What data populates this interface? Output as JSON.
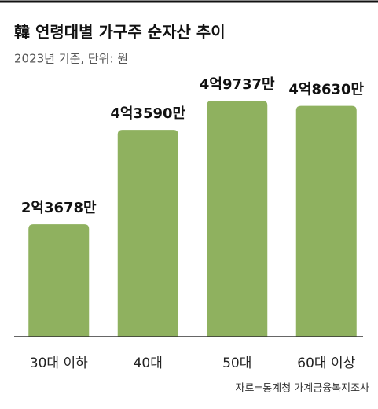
{
  "chart_data": {
    "type": "bar",
    "title": "韓 연령대별 가구주 순자산 추이",
    "subtitle": "2023년 기준, 단위: 원",
    "source": "자료=통계청 가계금융복지조사",
    "categories": [
      "30대 이하",
      "40대",
      "50대",
      "60대 이상"
    ],
    "values": [
      236780000,
      435900000,
      497370000,
      486300000
    ],
    "value_labels": [
      "2억3678만",
      "4억3590만",
      "4억9737만",
      "4억8630만"
    ],
    "color": "#8fb15f"
  }
}
